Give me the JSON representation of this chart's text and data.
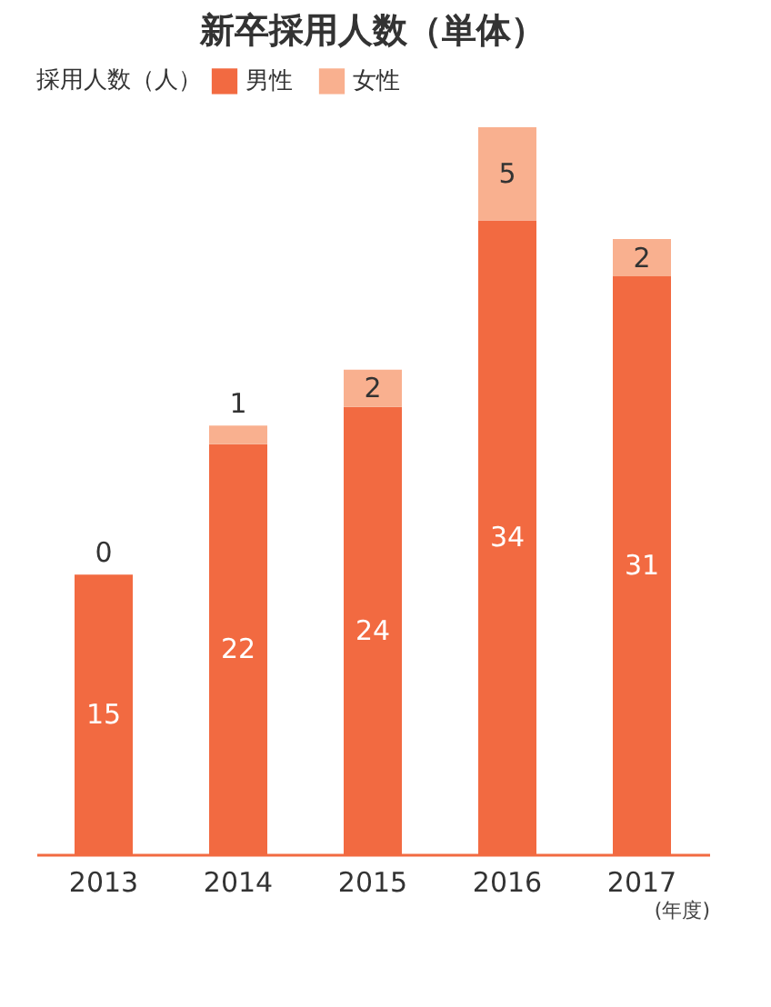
{
  "chart_data": {
    "type": "bar",
    "title": "新卒採用人数（単体）",
    "legend_title": "採用人数（人）",
    "xlabel": "(年度)",
    "categories": [
      "2013",
      "2014",
      "2015",
      "2016",
      "2017"
    ],
    "stacked": true,
    "data_labels": true,
    "legend": "top",
    "grid": false,
    "series": [
      {
        "name": "男性",
        "color": "#f26a41",
        "values": [
          15,
          22,
          24,
          34,
          31
        ]
      },
      {
        "name": "女性",
        "color": "#f9b08f",
        "values": [
          0,
          1,
          2,
          5,
          2
        ]
      }
    ]
  }
}
